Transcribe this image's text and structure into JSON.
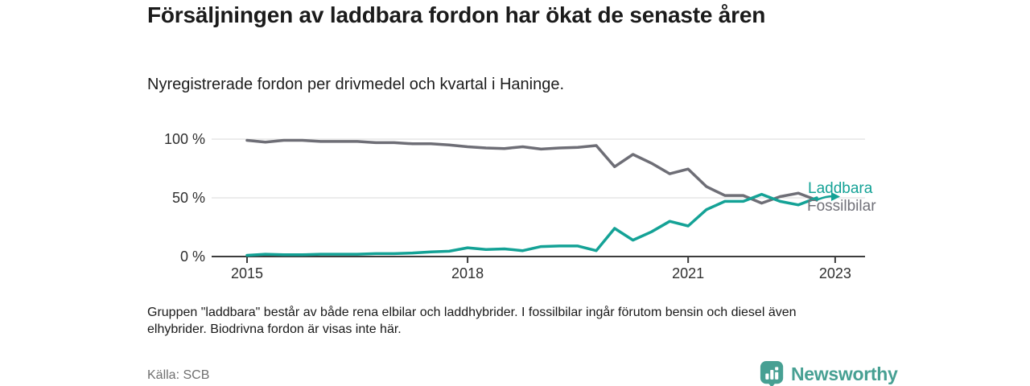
{
  "header": {
    "title": "Försäljningen av laddbara fordon har ökat de senaste åren",
    "subtitle": "Nyregistrerade fordon per drivmedel och kvartal i Haninge."
  },
  "chart_data": {
    "type": "line",
    "x_unit": "quarter",
    "quarters": [
      "2015-Q1",
      "2015-Q2",
      "2015-Q3",
      "2015-Q4",
      "2016-Q1",
      "2016-Q2",
      "2016-Q3",
      "2016-Q4",
      "2017-Q1",
      "2017-Q2",
      "2017-Q3",
      "2017-Q4",
      "2018-Q1",
      "2018-Q2",
      "2018-Q3",
      "2018-Q4",
      "2019-Q1",
      "2019-Q2",
      "2019-Q3",
      "2019-Q4",
      "2020-Q1",
      "2020-Q2",
      "2020-Q3",
      "2020-Q4",
      "2021-Q1",
      "2021-Q2",
      "2021-Q3",
      "2021-Q4",
      "2022-Q1",
      "2022-Q2",
      "2022-Q3",
      "2022-Q4"
    ],
    "series": [
      {
        "name": "Laddbara",
        "color": "#14a296",
        "values": [
          1,
          2,
          1.5,
          1.5,
          2,
          2,
          2,
          2.5,
          2.5,
          3,
          4,
          4.5,
          7.5,
          6,
          6.5,
          5,
          8.5,
          9,
          9,
          5,
          24,
          14,
          21,
          30,
          26,
          40,
          47,
          47,
          53,
          47,
          44,
          50
        ]
      },
      {
        "name": "Fossilbilar",
        "color": "#6e6e76",
        "values": [
          99,
          97.5,
          99,
          99,
          98,
          98,
          98,
          97,
          97,
          96,
          96,
          95,
          93.5,
          92.5,
          92,
          93.5,
          91.5,
          92.5,
          93,
          94.5,
          76.5,
          87,
          79.5,
          70.5,
          74.5,
          59.5,
          52,
          52,
          45.5,
          51,
          54,
          48
        ]
      }
    ],
    "ylim": [
      0,
      100
    ],
    "y_ticks": [
      {
        "label": "100 %",
        "value": 100
      },
      {
        "label": "50 %",
        "value": 50
      },
      {
        "label": "0 %",
        "value": 0
      }
    ],
    "x_ticks": [
      {
        "label": "2015",
        "index": 0
      },
      {
        "label": "2018",
        "index": 12
      },
      {
        "label": "2021",
        "index": 24
      },
      {
        "label": "2023",
        "index": 32
      }
    ],
    "grid": "horizontal",
    "legend_position": "right-of-line-end",
    "annotation": "arrow-continuation-on-Laddbara"
  },
  "footnote": "Gruppen \"laddbara\" består av både rena elbilar och laddhybrider. I fossilbilar ingår förutom bensin och diesel även elhybrider. Biodrivna fordon är visas inte här.",
  "footer": {
    "source": "Källa: SCB",
    "brand": "Newsworthy"
  }
}
